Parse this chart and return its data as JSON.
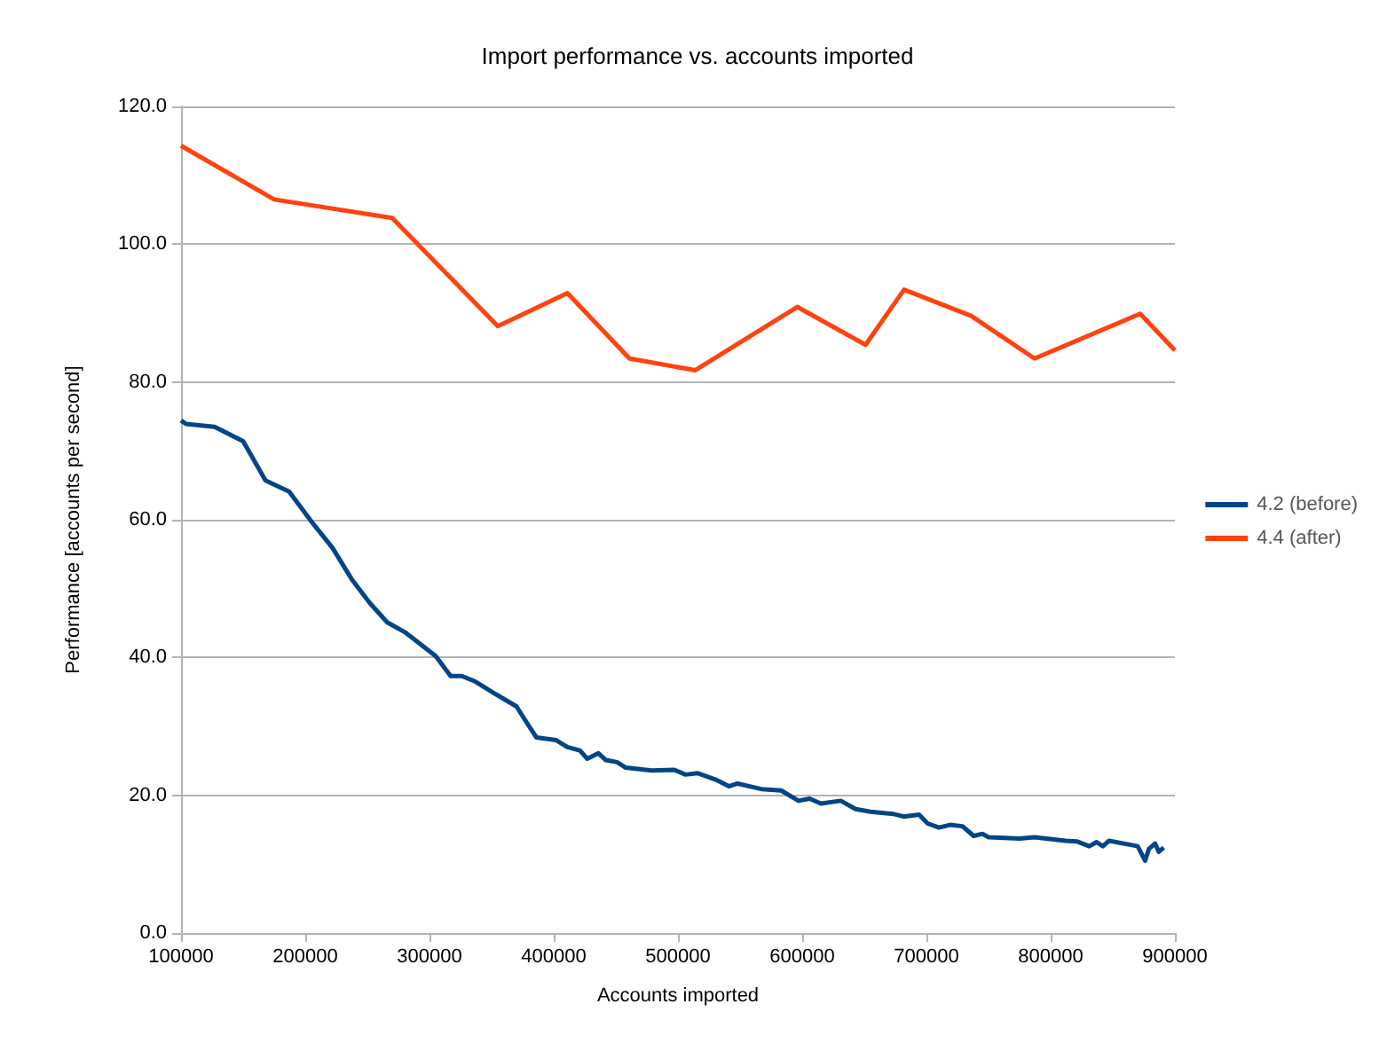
{
  "chart_data": {
    "type": "line",
    "title": "Import performance vs. accounts imported",
    "xlabel": "Accounts imported",
    "ylabel": "Performance [accounts per second]",
    "xlim": [
      100000,
      900000
    ],
    "xticks": [
      100000,
      200000,
      300000,
      400000,
      500000,
      600000,
      700000,
      800000,
      900000
    ],
    "ylim": [
      0,
      120
    ],
    "yticks": [
      {
        "value": 0,
        "label": "0.0"
      },
      {
        "value": 20,
        "label": "20.0"
      },
      {
        "value": 40,
        "label": "40.0"
      },
      {
        "value": 60,
        "label": "60.0"
      },
      {
        "value": 80,
        "label": "80.0"
      },
      {
        "value": 100,
        "label": "100.0"
      },
      {
        "value": 120,
        "label": "120.0"
      }
    ],
    "grid": "y",
    "legend": "right",
    "marker": "none",
    "line_style": "solid",
    "series": [
      {
        "name": "4.2 (before)",
        "color": "#004586",
        "x": [
          100000,
          104000,
          127000,
          150000,
          168000,
          187000,
          206000,
          222000,
          238000,
          252000,
          266000,
          280000,
          305000,
          317000,
          326000,
          337000,
          354000,
          370000,
          377000,
          386000,
          402000,
          411000,
          421000,
          427000,
          436000,
          442000,
          451000,
          458000,
          479000,
          497000,
          506000,
          516000,
          530000,
          541000,
          548000,
          567000,
          583000,
          597000,
          606000,
          615000,
          631000,
          643000,
          655000,
          673000,
          682000,
          694000,
          701000,
          710000,
          719000,
          729000,
          738000,
          745000,
          750000,
          775000,
          787000,
          812000,
          821000,
          831000,
          837000,
          842000,
          847000,
          870000,
          876000,
          879000,
          884000,
          887000,
          891000
        ],
        "values": [
          74.4,
          73.9,
          73.5,
          71.4,
          65.7,
          64.1,
          59.5,
          55.9,
          51.2,
          47.9,
          45.1,
          43.7,
          40.2,
          37.3,
          37.3,
          36.5,
          34.6,
          32.9,
          30.9,
          28.4,
          28.0,
          27.0,
          26.5,
          25.3,
          26.1,
          25.1,
          24.8,
          24.0,
          23.6,
          23.7,
          23.0,
          23.2,
          22.3,
          21.3,
          21.7,
          20.9,
          20.7,
          19.2,
          19.5,
          18.8,
          19.2,
          18.0,
          17.6,
          17.3,
          16.9,
          17.2,
          15.9,
          15.3,
          15.7,
          15.5,
          14.1,
          14.4,
          13.9,
          13.7,
          13.9,
          13.4,
          13.3,
          12.6,
          13.2,
          12.6,
          13.4,
          12.6,
          10.5,
          12.2,
          13.0,
          11.8,
          12.4
        ]
      },
      {
        "name": "4.4 (after)",
        "color": "#ff420e",
        "x": [
          100000,
          175000,
          270000,
          355000,
          411000,
          461000,
          514000,
          596000,
          651000,
          682000,
          736000,
          787000,
          872000,
          900000
        ],
        "values": [
          114.3,
          106.5,
          103.8,
          88.1,
          92.9,
          83.4,
          81.7,
          90.9,
          85.4,
          93.4,
          89.6,
          83.4,
          89.9,
          84.6
        ]
      }
    ]
  }
}
